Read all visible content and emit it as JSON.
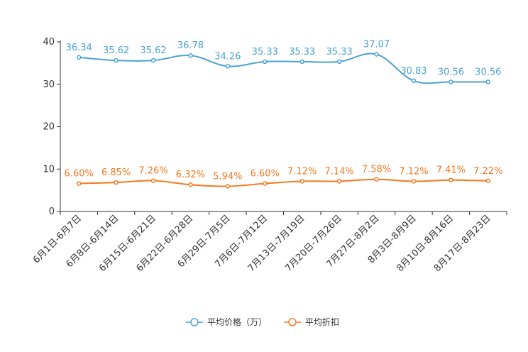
{
  "chart_data": {
    "type": "line",
    "title": "",
    "xlabel": "",
    "ylabel": "",
    "ylim": [
      0,
      40
    ],
    "yticks": [
      0,
      10,
      20,
      30,
      40
    ],
    "categories": [
      "6月1日-6月7日",
      "6月8日-6月14日",
      "6月15日-6月21日",
      "6月22日-6月28日",
      "6月29日-7月5日",
      "7月6日-7月12日",
      "7月13日-7月19日",
      "7月20日-7月26日",
      "7月27日-8月2日",
      "8月3日-8月9日",
      "8月10日-8月16日",
      "8月17日-8月23日"
    ],
    "series": [
      {
        "name": "平均价格（万）",
        "color": "#4aa3d4",
        "values": [
          36.34,
          35.62,
          35.62,
          36.78,
          34.26,
          35.33,
          35.33,
          35.33,
          37.07,
          30.83,
          30.56,
          30.56
        ],
        "labels": [
          "36.34",
          "35.62",
          "35.62",
          "36.78",
          "34.26",
          "35.33",
          "35.33",
          "35.33",
          "37.07",
          "30.83",
          "30.56",
          "30.56"
        ]
      },
      {
        "name": "平均折扣",
        "color": "#f47920",
        "values": [
          6.6,
          6.85,
          7.26,
          6.32,
          5.94,
          6.6,
          7.12,
          7.14,
          7.58,
          7.12,
          7.41,
          7.22
        ],
        "labels": [
          "6.60%",
          "6.85%",
          "7.26%",
          "6.32%",
          "5.94%",
          "6.60%",
          "7.12%",
          "7.14%",
          "7.58%",
          "7.12%",
          "7.41%",
          "7.22%"
        ]
      }
    ],
    "legend": "bottom-center"
  }
}
